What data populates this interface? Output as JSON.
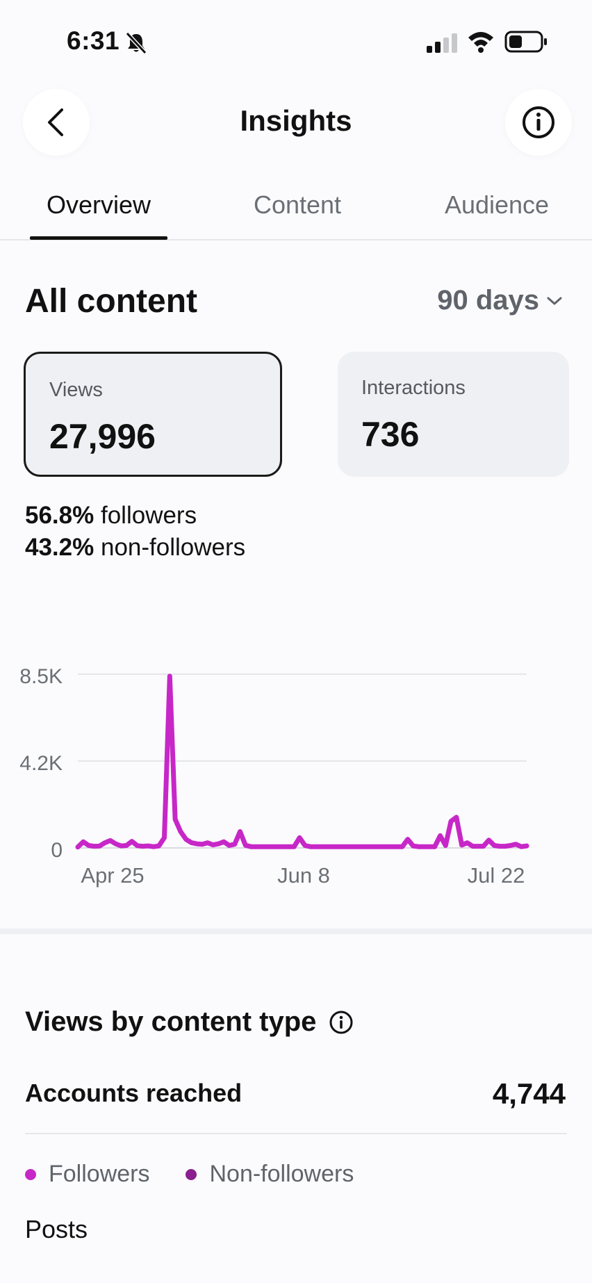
{
  "status_bar": {
    "time": "6:31"
  },
  "header": {
    "title": "Insights"
  },
  "tabs": [
    {
      "label": "Overview",
      "active": true
    },
    {
      "label": "Content",
      "active": false
    },
    {
      "label": "Audience",
      "active": false
    }
  ],
  "overview": {
    "title": "All content",
    "range": "90 days",
    "cards": [
      {
        "label": "Views",
        "value": "27,996",
        "selected": true
      },
      {
        "label": "Interactions",
        "value": "736",
        "selected": false
      }
    ],
    "followers_pct": "56.8%",
    "followers_label": "followers",
    "nonfollowers_pct": "43.2%",
    "nonfollowers_label": "non-followers"
  },
  "chart_data": {
    "type": "line",
    "y_ticks": [
      "8.5K",
      "4.2K",
      "0"
    ],
    "x_ticks": [
      "Apr 25",
      "Jun 8",
      "Jul 22"
    ],
    "ylim": [
      0,
      8500
    ],
    "color": "#c727c7",
    "series": [
      {
        "values": [
          40,
          300,
          120,
          80,
          90,
          250,
          360,
          200,
          100,
          120,
          320,
          110,
          80,
          100,
          60,
          100,
          500,
          8400,
          1400,
          800,
          420,
          260,
          200,
          180,
          250,
          150,
          200,
          300,
          120,
          180,
          800,
          130,
          60,
          60,
          60,
          60,
          60,
          60,
          60,
          60,
          60,
          500,
          120,
          60,
          60,
          60,
          60,
          60,
          60,
          60,
          60,
          60,
          60,
          60,
          60,
          60,
          60,
          60,
          60,
          60,
          60,
          420,
          100,
          60,
          60,
          60,
          60,
          600,
          120,
          1300,
          1500,
          140,
          250,
          80,
          80,
          80,
          380,
          120,
          80,
          80,
          120,
          180,
          60,
          100
        ]
      }
    ]
  },
  "views_by_type": {
    "title": "Views by content type",
    "accounts_reached_label": "Accounts reached",
    "accounts_reached_value": "4,744",
    "legend": [
      {
        "label": "Followers",
        "color": "#c727c7"
      },
      {
        "label": "Non-followers",
        "color": "#8a1f8e"
      }
    ],
    "posts_label": "Posts"
  }
}
